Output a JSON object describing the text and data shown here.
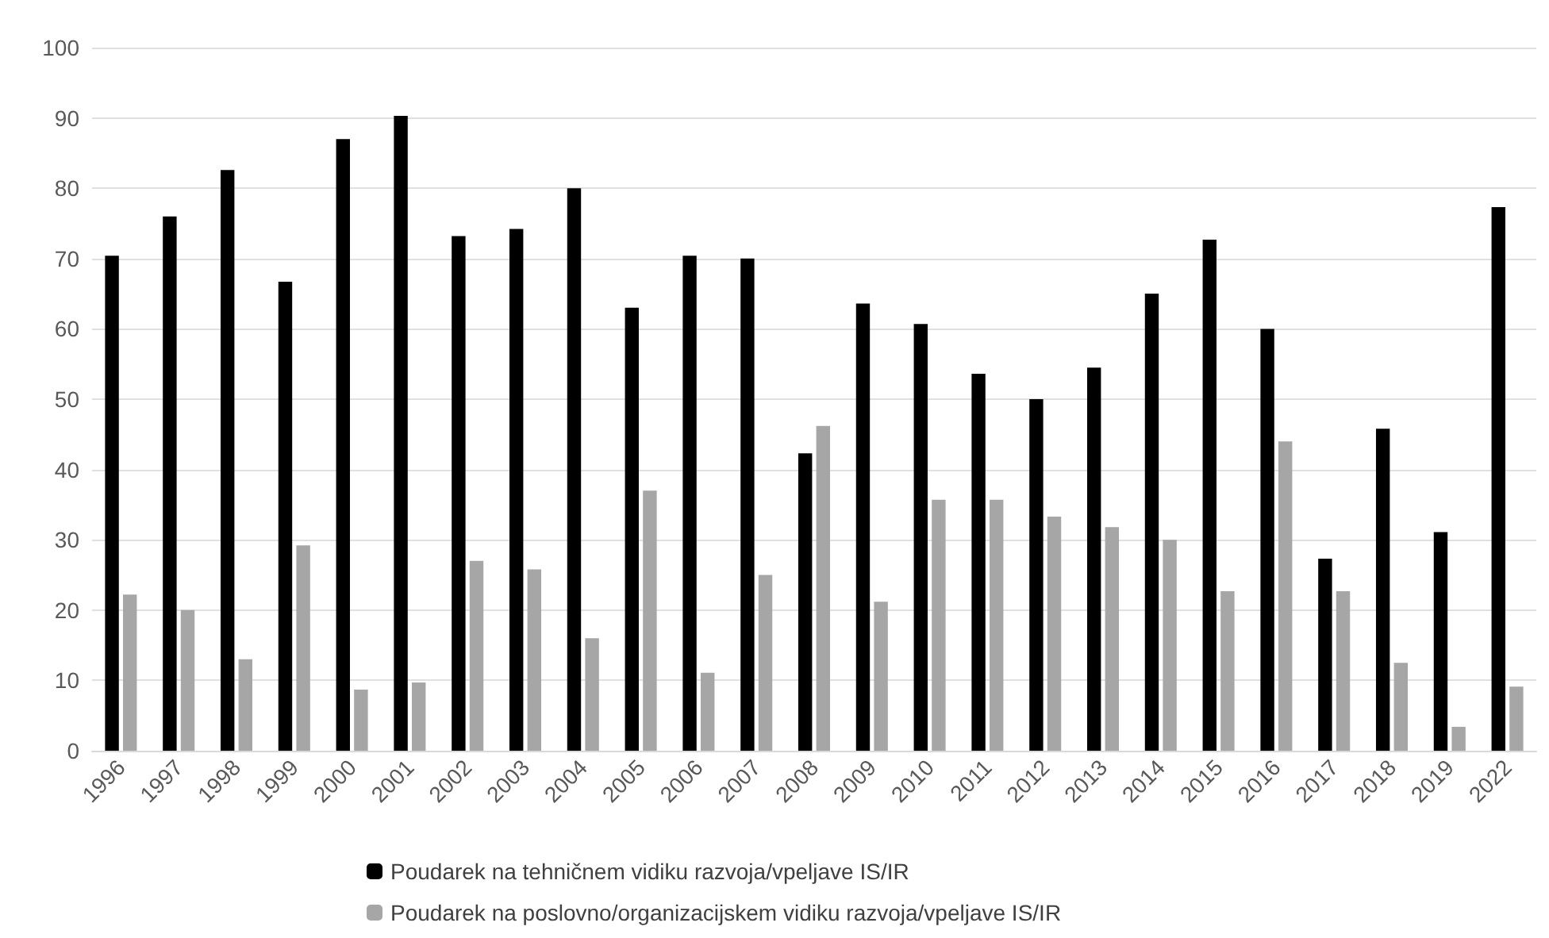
{
  "chart_data": {
    "type": "bar",
    "categories": [
      "1996",
      "1997",
      "1998",
      "1999",
      "2000",
      "2001",
      "2002",
      "2003",
      "2004",
      "2005",
      "2006",
      "2007",
      "2008",
      "2009",
      "2010",
      "2011",
      "2012",
      "2013",
      "2014",
      "2015",
      "2016",
      "2017",
      "2018",
      "2019",
      "2022"
    ],
    "series": [
      {
        "name": "Poudarek na tehničnem vidiku razvoja/vpeljave IS/IR",
        "color": "#000000",
        "values": [
          70.4,
          76,
          82.6,
          66.7,
          87,
          90.3,
          73.2,
          74.2,
          80,
          63,
          70.4,
          70,
          42.3,
          63.6,
          60.7,
          53.6,
          50,
          54.5,
          65,
          72.7,
          60,
          27.3,
          45.8,
          31.1,
          77.3
        ]
      },
      {
        "name": "Poudarek na poslovno/organizacijskem vidiku razvoja/vpeljave IS/IR",
        "color": "#a6a6a6",
        "values": [
          22.2,
          20,
          13,
          29.2,
          8.7,
          9.7,
          27,
          25.8,
          16,
          37,
          11.1,
          25,
          46.2,
          21.2,
          35.7,
          35.7,
          33.3,
          31.8,
          30,
          22.7,
          44,
          22.7,
          12.5,
          3.4,
          9.1
        ]
      }
    ],
    "ylim": [
      0,
      100
    ],
    "yticks": [
      0,
      10,
      20,
      30,
      40,
      50,
      60,
      70,
      80,
      90,
      100
    ],
    "grid": "y",
    "legend": "bottom"
  }
}
